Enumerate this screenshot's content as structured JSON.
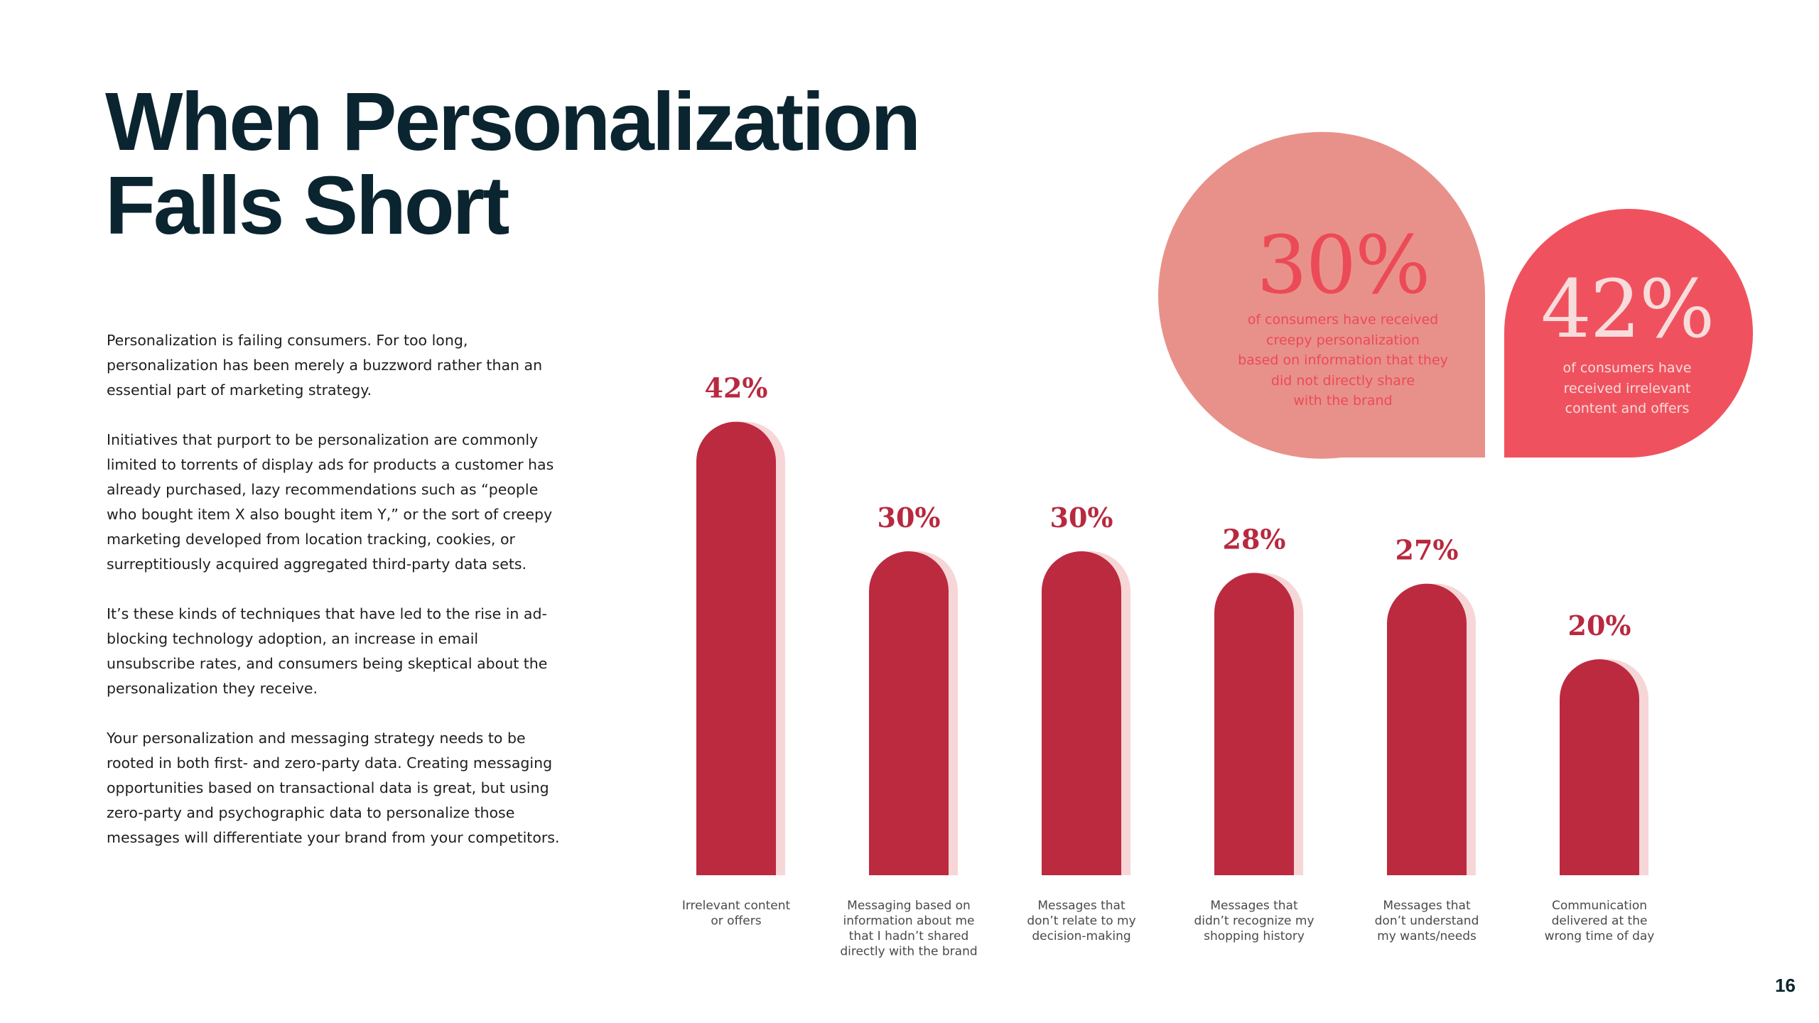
{
  "title": {
    "line1": "When Personalization",
    "line2": "Falls Short"
  },
  "body": {
    "paragraphs": [
      "Personalization is failing consumers. For too long, personalization has been merely a buzzword rather than an essential part of marketing strategy.",
      "Initiatives that purport to be personalization are commonly limited to torrents of display ads for products a customer has already purchased, lazy recommendations such as “people who bought item X also bought item Y,” or the sort of creepy marketing developed from location tracking, cookies, or surreptitiously acquired aggregated third-party data sets.",
      "It’s these kinds of techniques that have led to the rise in ad-blocking technology adoption, an increase in email unsubscribe rates, and consumers being skeptical about the personalization they receive.",
      "Your personalization and messaging strategy needs to be rooted in both first- and zero-party data. Creating messaging opportunities based on transactional data is great, but using zero-party and psychographic data to personalize those messages will differentiate your brand from your competitors."
    ]
  },
  "callouts": [
    {
      "value": "30%",
      "caption_lines": [
        "of consumers have received",
        "creepy personalization",
        "based on information that they",
        "did not directly share",
        "with the brand"
      ],
      "color": "#e8918a",
      "text_color": "#ec4a56"
    },
    {
      "value": "42%",
      "caption_lines": [
        "of consumers have",
        "received irrelevant",
        "content and offers"
      ],
      "color": "#ef525e",
      "text_color": "#f8dcdc"
    }
  ],
  "chart_data": {
    "type": "bar",
    "categories": [
      [
        "Irrelevant content",
        "or offers"
      ],
      [
        "Messaging based on",
        "information about me",
        "that I hadn’t shared",
        "directly with the brand"
      ],
      [
        "Messages that",
        "don’t relate to my",
        "decision-making"
      ],
      [
        "Messages that",
        "didn’t recognize my",
        "shopping history"
      ],
      [
        "Messages that",
        "don’t understand",
        "my wants/needs"
      ],
      [
        "Communication",
        "delivered at the",
        "wrong time of day"
      ]
    ],
    "values": [
      42,
      30,
      30,
      28,
      27,
      20
    ],
    "value_labels": [
      "42%",
      "30%",
      "30%",
      "28%",
      "27%",
      "20%"
    ],
    "bar_color": "#bc2a40",
    "shadow_color": "#f6d6d6"
  },
  "page_number": "16"
}
